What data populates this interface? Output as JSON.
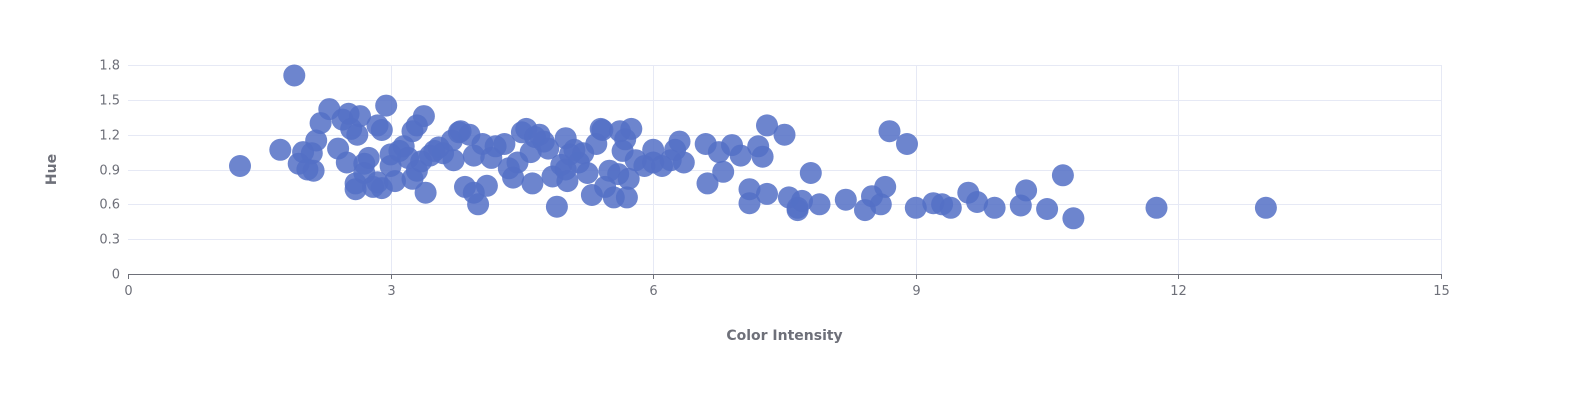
{
  "chart_data": {
    "type": "scatter",
    "xlabel": "Color Intensity",
    "ylabel": "Hue",
    "xlim": [
      0,
      15
    ],
    "ylim": [
      0,
      1.8
    ],
    "x_ticks": [
      "0",
      "3",
      "6",
      "9",
      "12",
      "15"
    ],
    "y_ticks": [
      "0",
      "0.3",
      "0.6",
      "0.9",
      "1.2",
      "1.5",
      "1.8"
    ],
    "grid": true,
    "legend": "none",
    "point_color": "#5470c6",
    "point_opacity": 0.85,
    "points": [
      [
        1.28,
        0.93
      ],
      [
        1.74,
        1.07
      ],
      [
        1.9,
        1.71
      ],
      [
        1.95,
        0.95
      ],
      [
        2.0,
        1.05
      ],
      [
        2.05,
        0.9
      ],
      [
        2.1,
        1.04
      ],
      [
        2.12,
        0.89
      ],
      [
        2.15,
        1.15
      ],
      [
        2.2,
        1.3
      ],
      [
        2.3,
        1.42
      ],
      [
        2.4,
        1.08
      ],
      [
        2.45,
        1.33
      ],
      [
        2.5,
        0.96
      ],
      [
        2.52,
        1.38
      ],
      [
        2.55,
        1.25
      ],
      [
        2.6,
        0.73
      ],
      [
        2.6,
        0.78
      ],
      [
        2.62,
        1.2
      ],
      [
        2.65,
        1.36
      ],
      [
        2.7,
        0.95
      ],
      [
        2.7,
        0.87
      ],
      [
        2.75,
        1.0
      ],
      [
        2.8,
        0.75
      ],
      [
        2.85,
        0.79
      ],
      [
        2.85,
        1.28
      ],
      [
        2.9,
        1.24
      ],
      [
        2.9,
        0.74
      ],
      [
        2.95,
        1.45
      ],
      [
        3.0,
        1.03
      ],
      [
        3.0,
        0.93
      ],
      [
        3.05,
        0.8
      ],
      [
        3.1,
        1.06
      ],
      [
        3.15,
        1.1
      ],
      [
        3.2,
        1.0
      ],
      [
        3.25,
        1.23
      ],
      [
        3.25,
        0.82
      ],
      [
        3.3,
        0.89
      ],
      [
        3.3,
        1.28
      ],
      [
        3.35,
        0.97
      ],
      [
        3.38,
        1.36
      ],
      [
        3.4,
        0.7
      ],
      [
        3.45,
        1.02
      ],
      [
        3.5,
        1.06
      ],
      [
        3.55,
        1.09
      ],
      [
        3.6,
        1.04
      ],
      [
        3.7,
        1.15
      ],
      [
        3.72,
        0.98
      ],
      [
        3.78,
        1.22
      ],
      [
        3.8,
        1.23
      ],
      [
        3.85,
        0.75
      ],
      [
        3.9,
        1.2
      ],
      [
        3.95,
        0.7
      ],
      [
        3.95,
        1.02
      ],
      [
        4.0,
        0.6
      ],
      [
        4.05,
        1.12
      ],
      [
        4.1,
        0.76
      ],
      [
        4.15,
        1.0
      ],
      [
        4.2,
        1.1
      ],
      [
        4.3,
        1.12
      ],
      [
        4.35,
        0.91
      ],
      [
        4.4,
        0.83
      ],
      [
        4.45,
        0.96
      ],
      [
        4.5,
        1.22
      ],
      [
        4.55,
        1.25
      ],
      [
        4.6,
        1.05
      ],
      [
        4.62,
        0.78
      ],
      [
        4.65,
        1.18
      ],
      [
        4.7,
        1.2
      ],
      [
        4.75,
        1.14
      ],
      [
        4.8,
        1.08
      ],
      [
        4.85,
        0.84
      ],
      [
        4.9,
        0.58
      ],
      [
        4.95,
        0.94
      ],
      [
        5.0,
        1.17
      ],
      [
        5.0,
        0.9
      ],
      [
        5.02,
        0.8
      ],
      [
        5.05,
        1.03
      ],
      [
        5.1,
        1.07
      ],
      [
        5.15,
        0.96
      ],
      [
        5.2,
        1.04
      ],
      [
        5.25,
        0.87
      ],
      [
        5.3,
        0.68
      ],
      [
        5.35,
        1.12
      ],
      [
        5.4,
        1.25
      ],
      [
        5.42,
        1.24
      ],
      [
        5.45,
        0.75
      ],
      [
        5.5,
        0.89
      ],
      [
        5.55,
        0.66
      ],
      [
        5.6,
        0.86
      ],
      [
        5.62,
        1.23
      ],
      [
        5.65,
        1.06
      ],
      [
        5.68,
        1.16
      ],
      [
        5.7,
        0.66
      ],
      [
        5.72,
        0.82
      ],
      [
        5.75,
        1.25
      ],
      [
        5.8,
        0.98
      ],
      [
        5.9,
        0.93
      ],
      [
        6.0,
        0.96
      ],
      [
        6.0,
        1.07
      ],
      [
        6.1,
        0.93
      ],
      [
        6.2,
        0.98
      ],
      [
        6.25,
        1.07
      ],
      [
        6.3,
        1.14
      ],
      [
        6.35,
        0.96
      ],
      [
        6.6,
        1.12
      ],
      [
        6.62,
        0.78
      ],
      [
        6.75,
        1.05
      ],
      [
        6.8,
        0.88
      ],
      [
        6.9,
        1.11
      ],
      [
        7.0,
        1.02
      ],
      [
        7.1,
        0.61
      ],
      [
        7.1,
        0.73
      ],
      [
        7.2,
        1.1
      ],
      [
        7.25,
        1.01
      ],
      [
        7.3,
        0.69
      ],
      [
        7.3,
        1.28
      ],
      [
        7.5,
        1.2
      ],
      [
        7.55,
        0.66
      ],
      [
        7.65,
        0.57
      ],
      [
        7.65,
        0.55
      ],
      [
        7.7,
        0.63
      ],
      [
        7.8,
        0.87
      ],
      [
        7.9,
        0.6
      ],
      [
        8.2,
        0.64
      ],
      [
        8.42,
        0.55
      ],
      [
        8.5,
        0.67
      ],
      [
        8.6,
        0.6
      ],
      [
        8.65,
        0.75
      ],
      [
        8.7,
        1.23
      ],
      [
        8.9,
        1.12
      ],
      [
        9.0,
        0.57
      ],
      [
        9.2,
        0.61
      ],
      [
        9.3,
        0.6
      ],
      [
        9.4,
        0.57
      ],
      [
        9.6,
        0.7
      ],
      [
        9.7,
        0.62
      ],
      [
        9.9,
        0.57
      ],
      [
        10.2,
        0.59
      ],
      [
        10.26,
        0.72
      ],
      [
        10.5,
        0.56
      ],
      [
        10.68,
        0.85
      ],
      [
        10.8,
        0.48
      ],
      [
        11.75,
        0.57
      ],
      [
        13.0,
        0.57
      ]
    ]
  }
}
